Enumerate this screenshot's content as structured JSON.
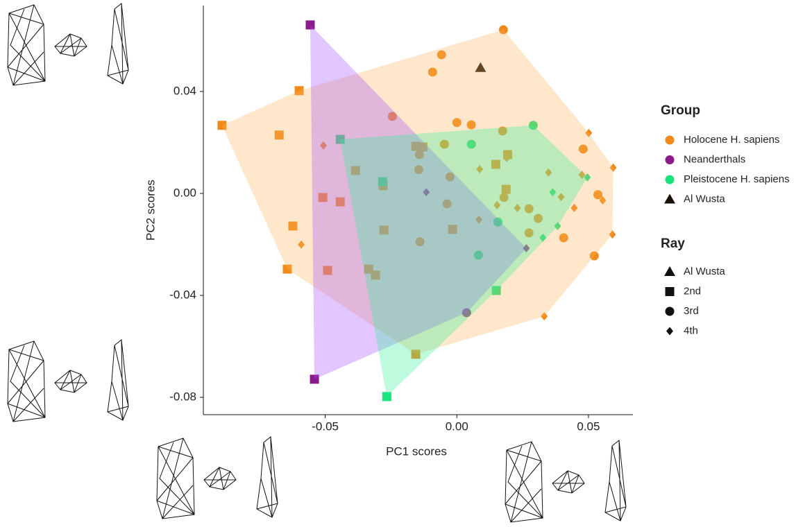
{
  "chart_data": {
    "type": "scatter",
    "xlabel": "PC1 scores",
    "ylabel": "PC2 scores",
    "xlim": [
      -0.0963,
      0.0669
    ],
    "ylim": [
      -0.0868,
      0.0737
    ],
    "xticks": [
      -0.05,
      {
        "value": 0,
        "label": "0.00"
      },
      0.05
    ],
    "yticks": [
      -0.08,
      -0.04,
      {
        "value": 0,
        "label": "0.00"
      },
      0.04
    ],
    "hulls": true,
    "legend_group_title": "Group",
    "legend_ray_title": "Ray",
    "rays": [
      {
        "name": "Al Wusta",
        "shape": "triangle"
      },
      {
        "name": "2nd",
        "shape": "square"
      },
      {
        "name": "3rd",
        "shape": "circle"
      },
      {
        "name": "4th",
        "shape": "diamond"
      }
    ],
    "series": [
      {
        "name": "Holocene H. sapiens",
        "color": "#f28a1a",
        "hull_color": "#fbb45c",
        "marker": "circle",
        "points": {
          "2nd": {
            "x": [
              -0.0892,
              -0.0599,
              -0.0675,
              -0.0644,
              -0.0623,
              -0.0509,
              -0.0443,
              -0.0491,
              -0.0385,
              -0.0335,
              -0.0309,
              -0.028,
              -0.0277,
              -0.0156,
              -0.0129,
              -0.0016,
              0.0148,
              0.0193,
              0.0187,
              -0.0156
            ],
            "y": [
              0.0267,
              0.0403,
              0.0229,
              -0.0297,
              -0.0128,
              -0.0016,
              -0.0033,
              -0.0302,
              0.009,
              -0.0297,
              -0.0321,
              0.003,
              -0.0144,
              0.0185,
              0.0182,
              -0.0141,
              0.0114,
              0.0152,
              0.0016,
              -0.0631
            ]
          },
          "3rd": {
            "x": [
              0.0177,
              -0.0058,
              -0.0092,
              -0.0245,
              0.0,
              0.0055,
              0.0174,
              -0.0047,
              0.048,
              -0.0142,
              -0.0026,
              -0.0145,
              -0.0037,
              -0.014,
              0.0179,
              0.0274,
              0.0309,
              0.0274,
              0.0406,
              0.0536,
              0.0522
            ],
            "y": [
              0.0642,
              0.0544,
              0.0476,
              0.0302,
              0.0278,
              0.0269,
              0.0245,
              0.0193,
              0.0174,
              0.0152,
              0.0065,
              0.0093,
              -0.0041,
              -0.019,
              -0.0016,
              -0.006,
              -0.0098,
              -0.0155,
              -0.0174,
              -0.0005,
              -0.0245
            ]
          },
          "4th": {
            "x": [
              -0.0507,
              -0.0591,
              0.0087,
              0.019,
              0.0153,
              0.023,
              0.0348,
              0.0396,
              0.0446,
              0.0501,
              0.0594,
              0.0554,
              0.0591,
              0.0332,
              0.0084,
              0.0475
            ],
            "y": [
              0.0188,
              -0.0201,
              0.0095,
              0.0139,
              -0.0046,
              -0.0057,
              0.0082,
              -0.0014,
              -0.0057,
              0.0237,
              0.0101,
              -0.0027,
              -0.0161,
              -0.0482,
              -0.0103,
              0.0073
            ]
          }
        }
      },
      {
        "name": "Neanderthals",
        "color": "#8b1a8b",
        "hull_color": "#a64dff",
        "marker": "circle",
        "points": {
          "2nd": {
            "x": [
              -0.0557,
              -0.0541
            ],
            "y": [
              0.0661,
              -0.0729
            ]
          },
          "3rd": {
            "x": [
              0.0037
            ],
            "y": [
              -0.0468
            ]
          },
          "4th": {
            "x": [
              -0.0116,
              0.0264
            ],
            "y": [
              0.0005,
              -0.0215
            ]
          }
        }
      },
      {
        "name": "Pleistocene H. sapiens",
        "color": "#19e37a",
        "hull_color": "#33ee99",
        "marker": "circle",
        "points": {
          "2nd": {
            "x": [
              -0.0443,
              -0.0282,
              0.015,
              -0.0266
            ],
            "y": [
              0.0212,
              0.0046,
              -0.0381,
              -0.0797
            ]
          },
          "3rd": {
            "x": [
              0.029,
              0.0055,
              0.0156,
              0.0082
            ],
            "y": [
              0.0267,
              0.0193,
              -0.0112,
              -0.0242
            ]
          },
          "4th": {
            "x": [
              0.0496,
              0.0364,
              0.0383,
              0.0327
            ],
            "y": [
              0.0063,
              0.0005,
              -0.0128,
              -0.0174
            ]
          }
        }
      },
      {
        "name": "Al Wusta",
        "color": "#1a1208",
        "hull_color": "#1a1208",
        "marker": "triangle",
        "points": {
          "Al Wusta": {
            "x": [
              0.009
            ],
            "y": [
              0.0493
            ]
          }
        }
      }
    ]
  }
}
